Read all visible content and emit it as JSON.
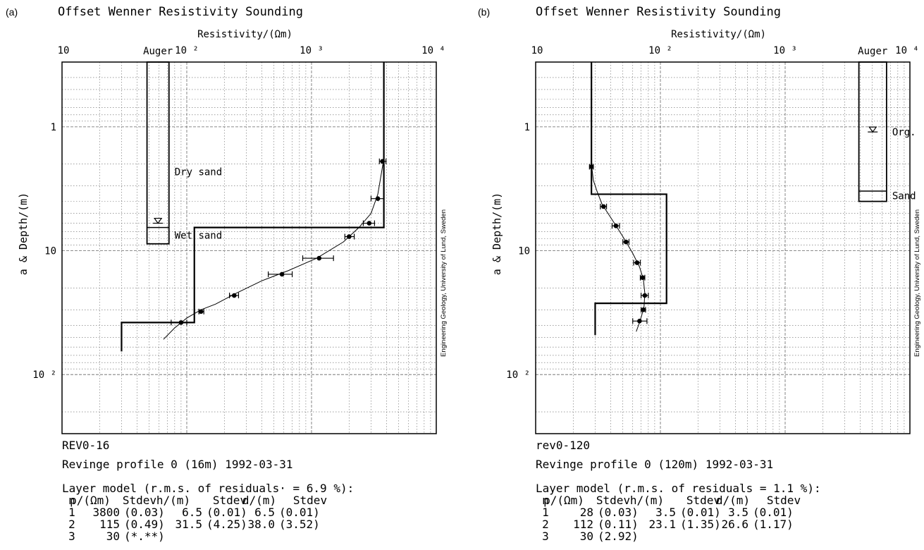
{
  "chart_data": [
    {
      "type": "scatter",
      "panel": "(a)",
      "title": "Offset Wenner Resistivity Sounding",
      "xlabel": "Resistivity/(Ωm)",
      "ylabel": "a & Depth/(m)",
      "x_scale": "log",
      "y_scale": "log",
      "y_inverted": true,
      "xlim": [
        10,
        10000
      ],
      "ylim": [
        0.3,
        300
      ],
      "x_ticks": [
        "10",
        "10 ²",
        "10 ³",
        "10 ⁴"
      ],
      "y_ticks": [
        "1",
        "10",
        "10 ²"
      ],
      "grid": true,
      "credit": "Engineering Geology, University of Lund, Sweden",
      "series": [
        {
          "kind": "measured",
          "points": [
            {
              "x": 3700,
              "y": 1.9,
              "lo": 3500,
              "hi": 3950
            },
            {
              "x": 3400,
              "y": 3.8,
              "lo": 3000,
              "hi": 3800
            },
            {
              "x": 2900,
              "y": 6.0,
              "lo": 2600,
              "hi": 3200
            },
            {
              "x": 2000,
              "y": 7.7,
              "lo": 1850,
              "hi": 2200
            },
            {
              "x": 1150,
              "y": 11.5,
              "lo": 850,
              "hi": 1500
            },
            {
              "x": 580,
              "y": 15.5,
              "lo": 450,
              "hi": 700
            },
            {
              "x": 240,
              "y": 23.0,
              "lo": 220,
              "hi": 260
            },
            {
              "x": 130,
              "y": 31.0,
              "lo": 125,
              "hi": 137
            },
            {
              "x": 90,
              "y": 38.0,
              "lo": 75,
              "hi": 100
            }
          ]
        },
        {
          "kind": "fitted-curve",
          "points": [
            [
              3800,
              1.8
            ],
            [
              3600,
              2.5
            ],
            [
              3400,
              3.5
            ],
            [
              3000,
              5.0
            ],
            [
              2400,
              6.5
            ],
            [
              1800,
              8.5
            ],
            [
              1100,
              11.5
            ],
            [
              650,
              14.5
            ],
            [
              400,
              17.5
            ],
            [
              250,
              22
            ],
            [
              170,
              27
            ],
            [
              130,
              30
            ],
            [
              100,
              35
            ],
            [
              80,
              42
            ],
            [
              65,
              52
            ]
          ]
        }
      ],
      "layer_model": [
        {
          "rho": 3800,
          "top": 0.3,
          "bottom": 6.5
        },
        {
          "rho": 115,
          "top": 6.5,
          "bottom": 38.0
        },
        {
          "rho": 30,
          "top": 38.0,
          "bottom": 65
        }
      ],
      "auger": {
        "label": "Auger",
        "x_range": [
          48,
          72
        ],
        "top": 0.3,
        "water_table": 6.0,
        "bottom": 8.8,
        "divider": 6.5,
        "layers": [
          {
            "name": "Dry sand",
            "label_depth": 2.3
          },
          {
            "name": "Wet sand",
            "label_depth": 7.5
          }
        ]
      },
      "profile_id": "REV0-16",
      "profile_desc": "Revinge profile 0 (16m)    1992-03-31",
      "model_title": "Layer model  (r.m.s.  of residuals· =  6.9  %):",
      "table_header": [
        "n",
        "ρ/(Ωm)",
        "Stdev",
        "h/(m)",
        "Stdev",
        "d/(m)",
        "Stdev"
      ],
      "table_rows": [
        [
          "1",
          "3800",
          "(0.03)",
          "6.5",
          "(0.01)",
          "6.5",
          "(0.01)"
        ],
        [
          "2",
          "115",
          "(0.49)",
          "31.5",
          "(4.25)",
          "38.0",
          "(3.52)"
        ],
        [
          "3",
          "30",
          "(*.**)",
          "",
          "",
          "",
          ""
        ]
      ]
    },
    {
      "type": "scatter",
      "panel": "(b)",
      "title": "Offset Wenner Resistivity Sounding",
      "xlabel": "Resistivity/(Ωm)",
      "ylabel": "a & Depth/(m)",
      "x_scale": "log",
      "y_scale": "log",
      "y_inverted": true,
      "xlim": [
        10,
        10000
      ],
      "ylim": [
        0.3,
        300
      ],
      "x_ticks": [
        "10",
        "10 ²",
        "10 ³",
        "10 ⁴"
      ],
      "y_ticks": [
        "1",
        "10",
        "10 ²"
      ],
      "grid": true,
      "credit": "Engineering Geology, University of Lund, Sweden",
      "series": [
        {
          "kind": "measured",
          "points": [
            {
              "x": 28,
              "y": 2.1,
              "lo": 27,
              "hi": 29
            },
            {
              "x": 35,
              "y": 4.4,
              "lo": 33,
              "hi": 37
            },
            {
              "x": 44,
              "y": 6.3,
              "lo": 41,
              "hi": 47
            },
            {
              "x": 53,
              "y": 8.5,
              "lo": 50,
              "hi": 56
            },
            {
              "x": 65,
              "y": 12.5,
              "lo": 61,
              "hi": 69
            },
            {
              "x": 72,
              "y": 16.5,
              "lo": 69,
              "hi": 75
            },
            {
              "x": 75,
              "y": 23.0,
              "lo": 70,
              "hi": 80
            },
            {
              "x": 73,
              "y": 30.0,
              "lo": 70,
              "hi": 76
            },
            {
              "x": 68,
              "y": 37.0,
              "lo": 60,
              "hi": 78
            }
          ]
        },
        {
          "kind": "fitted-curve",
          "points": [
            [
              28,
              2.0
            ],
            [
              29,
              2.7
            ],
            [
              31,
              3.3
            ],
            [
              34,
              4.2
            ],
            [
              39,
              5.2
            ],
            [
              45,
              6.5
            ],
            [
              52,
              8.2
            ],
            [
              60,
              10.5
            ],
            [
              68,
              13.5
            ],
            [
              73,
              17
            ],
            [
              75,
              22
            ],
            [
              74,
              28
            ],
            [
              71,
              33
            ],
            [
              68,
              38
            ],
            [
              64,
              45
            ]
          ]
        }
      ],
      "layer_model": [
        {
          "rho": 28,
          "top": 0.3,
          "bottom": 3.5
        },
        {
          "rho": 112,
          "top": 3.5,
          "bottom": 26.6
        },
        {
          "rho": 30,
          "top": 26.6,
          "bottom": 48
        }
      ],
      "auger": {
        "label": "Auger",
        "x_range": [
          3900,
          6500
        ],
        "top": 0.3,
        "water_table": 1.1,
        "bottom": 4.0,
        "divider": 3.3,
        "layers": [
          {
            "name": "Org.",
            "label_depth": 1.1
          },
          {
            "name": "Sand",
            "label_depth": 3.6
          }
        ]
      },
      "profile_id": "rev0-120",
      "profile_desc": "Revinge profile 0 (120m)    1992-03-31",
      "model_title": "Layer model  (r.m.s.  of  residuals  =  1.1  %):",
      "table_header": [
        "n",
        "ρ/(Ωm)",
        "Stdev",
        "h/(m)",
        "Stdev",
        "d/(m)",
        "Stdev"
      ],
      "table_rows": [
        [
          "1",
          "28",
          "(0.03)",
          "3.5",
          "(0.01)",
          "3.5",
          "(0.01)"
        ],
        [
          "2",
          "112",
          "(0.11)",
          "23.1",
          "(1.35)",
          "26.6",
          "(1.17)"
        ],
        [
          "3",
          "30",
          "(2.92)",
          "",
          "",
          "",
          ""
        ]
      ]
    }
  ]
}
